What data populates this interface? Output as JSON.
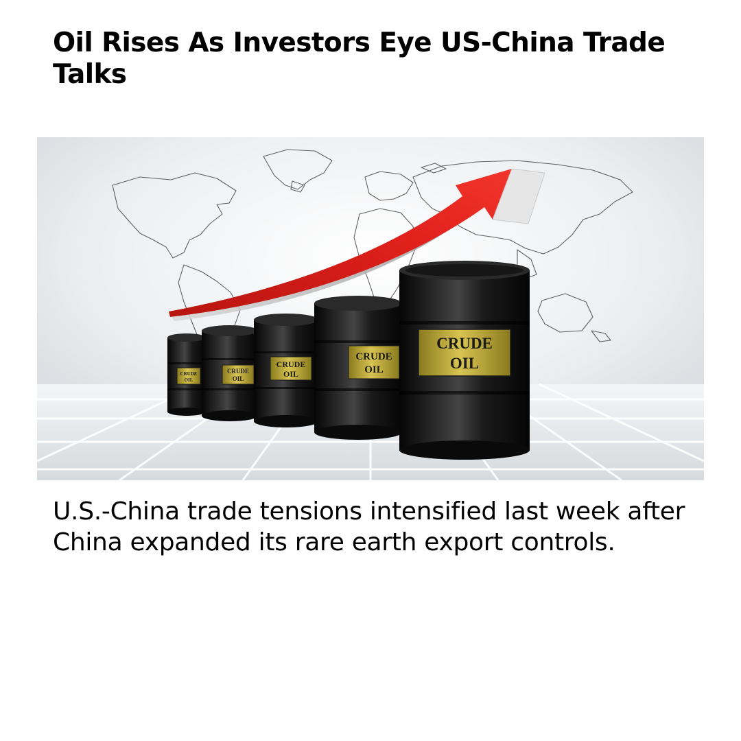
{
  "article": {
    "headline": "Oil Rises As Investors Eye US-China Trade Talks",
    "summary": "U.S.-China trade tensions intensified last week after China expanded its rare earth export controls."
  },
  "image": {
    "subject": "crude-oil-barrels-with-rising-arrow",
    "barrel_label_line1": "CRUDE",
    "barrel_label_line2": "OIL",
    "colors": {
      "arrow": "#e0201b",
      "barrel": "#141414",
      "label": "#c9b23a",
      "background": "#eef0f2"
    }
  }
}
